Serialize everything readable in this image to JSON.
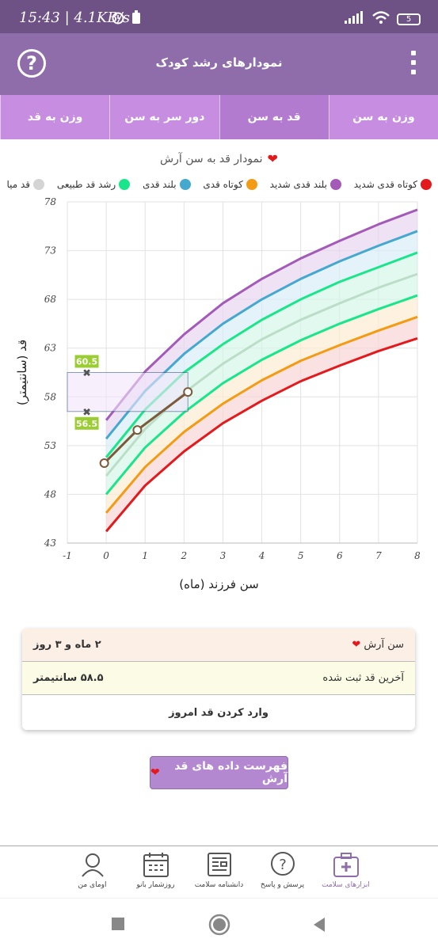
{
  "status": {
    "time": "15:43 | 4.1KB/s",
    "battery": "5"
  },
  "app": {
    "title": "نمودارهای رشد کودک",
    "help_label": "?"
  },
  "tabs": [
    {
      "label": "وزن به سن",
      "active": false
    },
    {
      "label": "قد به سن",
      "active": true
    },
    {
      "label": "دور سر به سن",
      "active": false
    },
    {
      "label": "وزن به قد",
      "active": false
    }
  ],
  "chart_title": "نمودار قد به سن آرش",
  "legend": [
    {
      "label": "کوتاه قدی شدید",
      "color": "#e3191c"
    },
    {
      "label": "بلند قدی شدید",
      "color": "#a45ab8"
    },
    {
      "label": "کوتاه قدی",
      "color": "#f49b14"
    },
    {
      "label": "بلند قدی",
      "color": "#45a8cf"
    },
    {
      "label": "رشد قد طبیعی",
      "color": "#19e68a"
    },
    {
      "label": "قد میانگین",
      "color": "#d4d4d4"
    }
  ],
  "chart_data": {
    "type": "line",
    "xlabel": "سن فرزند (ماه)",
    "ylabel": "قد (سانتیمتر)",
    "xlim": [
      -1,
      8
    ],
    "ylim": [
      43,
      78
    ],
    "x_ticks": [
      "-1",
      "0",
      "1",
      "2",
      "3",
      "4",
      "5",
      "6",
      "7",
      "8"
    ],
    "y_ticks": [
      "43",
      "48",
      "53",
      "58",
      "63",
      "68",
      "73",
      "78"
    ],
    "grid": true,
    "series": [
      {
        "name": "بلند قدی شدید",
        "color": "#a45ab8",
        "x": [
          0,
          1,
          2,
          3,
          4,
          5,
          6,
          7,
          8
        ],
        "y": [
          55.6,
          60.6,
          64.4,
          67.6,
          70.1,
          72.2,
          74.0,
          75.7,
          77.2
        ]
      },
      {
        "name": "بلند قدی",
        "color": "#45a8cf",
        "x": [
          0,
          1,
          2,
          3,
          4,
          5,
          6,
          7,
          8
        ],
        "y": [
          53.7,
          58.6,
          62.4,
          65.5,
          68.0,
          70.1,
          71.9,
          73.5,
          75.0
        ]
      },
      {
        "name": "رشد قد طبیعی",
        "color": "#19e68a",
        "x": [
          0,
          1,
          2,
          3,
          4,
          5,
          6,
          7,
          8
        ],
        "y": [
          51.8,
          56.7,
          60.5,
          63.4,
          65.9,
          68.0,
          69.8,
          71.3,
          72.8
        ]
      },
      {
        "name": "قد میانگین",
        "color": "#bcddc8",
        "x": [
          0,
          1,
          2,
          3,
          4,
          5,
          6,
          7,
          8
        ],
        "y": [
          49.9,
          54.7,
          58.4,
          61.4,
          63.9,
          65.9,
          67.6,
          69.2,
          70.6
        ]
      },
      {
        "name": "",
        "color": "#19e68a",
        "x": [
          0,
          1,
          2,
          3,
          4,
          5,
          6,
          7,
          8
        ],
        "y": [
          48.0,
          52.8,
          56.4,
          59.4,
          61.8,
          63.8,
          65.5,
          67.0,
          68.4
        ]
      },
      {
        "name": "کوتاه قدی",
        "color": "#f49b14",
        "x": [
          0,
          1,
          2,
          3,
          4,
          5,
          6,
          7,
          8
        ],
        "y": [
          46.1,
          50.8,
          54.4,
          57.3,
          59.7,
          61.7,
          63.3,
          64.8,
          66.2
        ]
      },
      {
        "name": "کوتاه قدی شدید",
        "color": "#e3191c",
        "x": [
          0,
          1,
          2,
          3,
          4,
          5,
          6,
          7,
          8
        ],
        "y": [
          44.2,
          48.9,
          52.4,
          55.3,
          57.6,
          59.6,
          61.2,
          62.7,
          64.0
        ]
      }
    ],
    "child": {
      "name": "آرش",
      "color": "#7d5a3a",
      "x": [
        -0.05,
        0.8,
        2.1
      ],
      "y": [
        51.2,
        54.6,
        58.5
      ]
    },
    "range_box": {
      "x": [
        -1,
        2.1
      ],
      "y": [
        56.5,
        60.5
      ],
      "labels": [
        "60.5",
        "56.5"
      ]
    }
  },
  "card": {
    "age_label": "سن آرش",
    "age_value": "۲ ماه و ۳ روز",
    "last_label": "آخرین قد ثبت شده",
    "last_value": "۵۸.۵ سانتیمتر",
    "enter_label": "وارد کردن قد امروز"
  },
  "list_button": "فهرست داده های قد آرش",
  "bottom_nav": [
    {
      "label": "ابزارهای سلامت",
      "icon": "health-kit-icon",
      "active": true
    },
    {
      "label": "پرسش و پاسخ",
      "icon": "question-icon",
      "active": false
    },
    {
      "label": "دانشنامه سلامت",
      "icon": "newspaper-icon",
      "active": false
    },
    {
      "label": "روزشمار بانو",
      "icon": "calendar-icon",
      "active": false
    },
    {
      "label": "اومای من",
      "icon": "user-icon",
      "active": false
    }
  ]
}
